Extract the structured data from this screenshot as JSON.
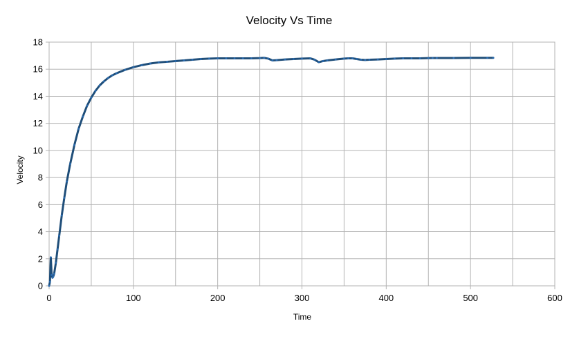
{
  "chart_data": {
    "type": "line",
    "title": "Velocity Vs Time",
    "xlabel": "Time",
    "ylabel": "Velocity",
    "xlim": [
      0,
      600
    ],
    "ylim": [
      0,
      18
    ],
    "xticks": [
      "0",
      "100",
      "200",
      "300",
      "400",
      "500",
      "600"
    ],
    "yticks": [
      "0",
      "2",
      "4",
      "6",
      "8",
      "10",
      "12",
      "14",
      "16",
      "18"
    ],
    "grid": true,
    "legend": "none",
    "series": [
      {
        "color": "#1f4e79",
        "x": [
          0,
          1,
          2,
          3,
          4,
          5,
          6,
          8,
          10,
          12,
          15,
          18,
          21,
          25,
          30,
          35,
          40,
          45,
          50,
          55,
          60,
          65,
          70,
          75,
          80,
          90,
          100,
          110,
          120,
          130,
          140,
          150,
          160,
          170,
          180,
          190,
          200,
          210,
          220,
          230,
          240,
          250,
          255,
          260,
          265,
          270,
          280,
          290,
          300,
          310,
          315,
          320,
          325,
          330,
          340,
          350,
          355,
          360,
          365,
          370,
          375,
          380,
          390,
          400,
          410,
          420,
          430,
          440,
          450,
          455,
          460,
          480,
          500,
          520,
          527
        ],
        "y": [
          0.0,
          0.3,
          2.1,
          0.8,
          0.6,
          0.7,
          0.9,
          1.7,
          2.7,
          3.7,
          5.2,
          6.5,
          7.7,
          9.0,
          10.4,
          11.6,
          12.5,
          13.3,
          13.9,
          14.4,
          14.8,
          15.1,
          15.35,
          15.55,
          15.7,
          15.95,
          16.15,
          16.3,
          16.42,
          16.5,
          16.55,
          16.6,
          16.65,
          16.7,
          16.75,
          16.78,
          16.8,
          16.8,
          16.8,
          16.8,
          16.8,
          16.82,
          16.84,
          16.78,
          16.65,
          16.67,
          16.72,
          16.75,
          16.78,
          16.8,
          16.7,
          16.52,
          16.6,
          16.65,
          16.72,
          16.78,
          16.8,
          16.8,
          16.75,
          16.7,
          16.68,
          16.7,
          16.72,
          16.75,
          16.78,
          16.8,
          16.8,
          16.8,
          16.82,
          16.83,
          16.83,
          16.83,
          16.84,
          16.84,
          16.84
        ]
      }
    ]
  }
}
